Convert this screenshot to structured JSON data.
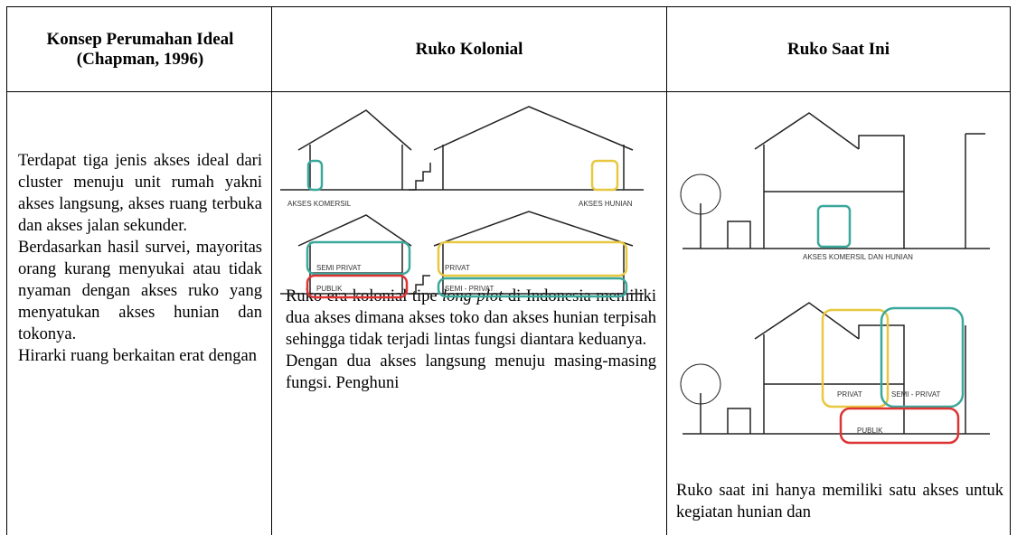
{
  "table": {
    "headers": [
      "Konsep Perumahan Ideal (Chapman, 1996)",
      "Ruko Kolonial",
      "Ruko Saat Ini"
    ],
    "cells": [
      {
        "paragraphs": [
          "Terdapat tiga jenis akses ideal dari cluster menuju unit rumah yakni akses langsung, akses ruang terbuka dan akses jalan sekunder.",
          "Berdasarkan hasil survei, mayoritas orang kurang menyukai atau tidak nyaman dengan akses ruko yang menyatukan akses hunian dan tokonya.",
          "Hirarki ruang berkaitan erat dengan"
        ]
      },
      {
        "figure_labels": [
          "AKSES KOMERSIL",
          "AKSES HUNIAN",
          "SEMI PRIVAT",
          "PUBLIK",
          "PRIVAT",
          "SEMI - PRIVAT"
        ],
        "paragraphs": [
          [
            "Ruko era kolonial tipe ",
            "long plot",
            " di Indonesia memiliki dua akses dimana akses toko dan akses hunian terpisah sehingga tidak terjadi lintas fungsi diantara keduanya."
          ],
          "Dengan dua akses langsung menuju masing-masing fungsi. Penghuni"
        ]
      },
      {
        "figure_labels": [
          "AKSES KOMERSIL DAN HUNIAN",
          "PRIVAT",
          "SEMI - PRIVAT",
          "PUBLIK"
        ],
        "paragraphs": [
          "Ruko saat ini hanya memiliki satu akses untuk kegiatan hunian dan"
        ]
      }
    ]
  }
}
